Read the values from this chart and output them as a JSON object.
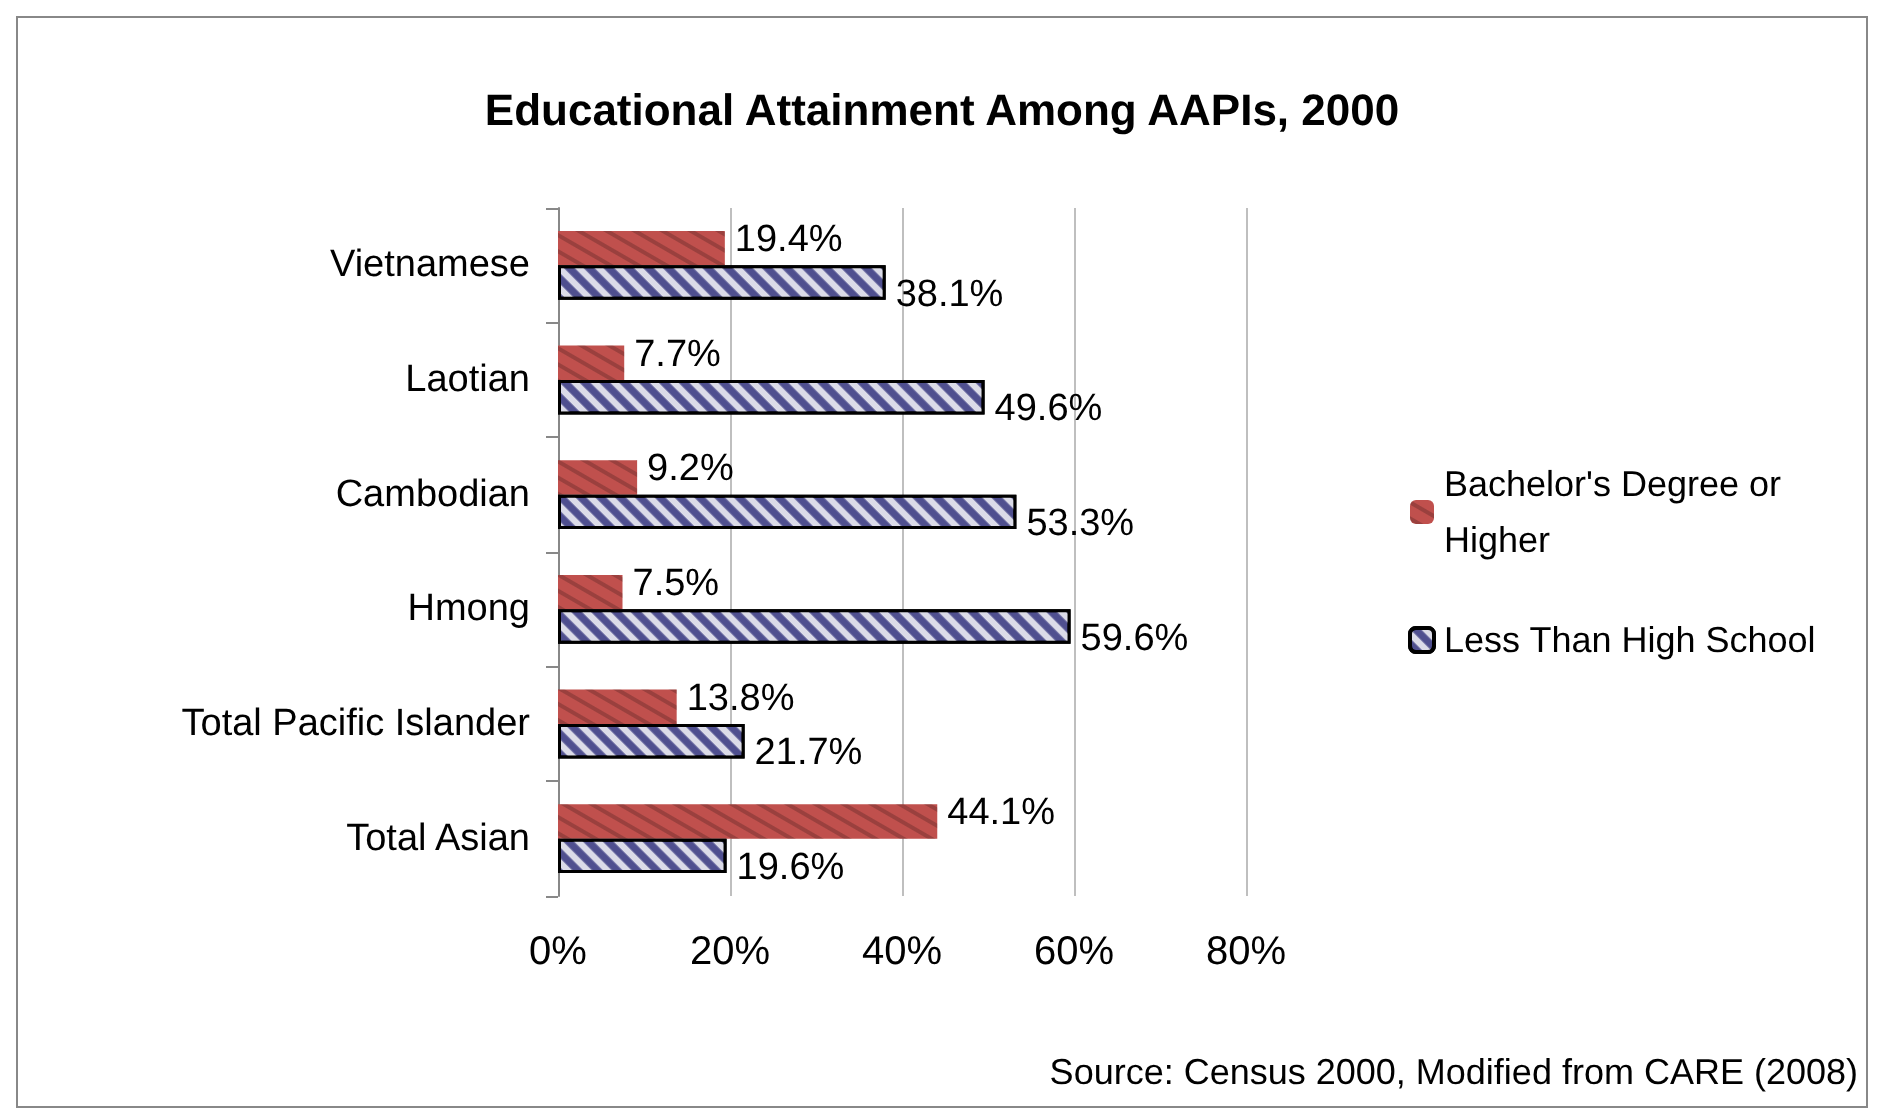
{
  "chart_data": {
    "type": "bar",
    "orientation": "horizontal",
    "title": "Educational Attainment Among AAPIs, 2000",
    "categories": [
      "Vietnamese",
      "Laotian",
      "Cambodian",
      "Hmong",
      "Total Pacific Islander",
      "Total Asian"
    ],
    "series": [
      {
        "name": "Bachelor's Degree or Higher",
        "color": "#c0504d",
        "values": [
          19.4,
          7.7,
          9.2,
          7.5,
          13.8,
          44.1
        ],
        "value_labels": [
          "19.4%",
          "7.7%",
          "9.2%",
          "7.5%",
          "13.8%",
          "44.1%"
        ]
      },
      {
        "name": "Less Than High School",
        "color": "#4f4f8f",
        "values": [
          38.1,
          49.6,
          53.3,
          59.6,
          21.7,
          19.6
        ],
        "value_labels": [
          "38.1%",
          "49.6%",
          "53.3%",
          "59.6%",
          "21.7%",
          "19.6%"
        ]
      }
    ],
    "xlim": [
      0,
      80
    ],
    "xticks": [
      {
        "value": 0,
        "label": "0%"
      },
      {
        "value": 20,
        "label": "20%"
      },
      {
        "value": 40,
        "label": "40%"
      },
      {
        "value": 60,
        "label": "60%"
      },
      {
        "value": 80,
        "label": "80%"
      }
    ],
    "grid": "x",
    "legend": "right",
    "annotations": [
      "Source: Census 2000, Modified from CARE (2008)"
    ]
  }
}
